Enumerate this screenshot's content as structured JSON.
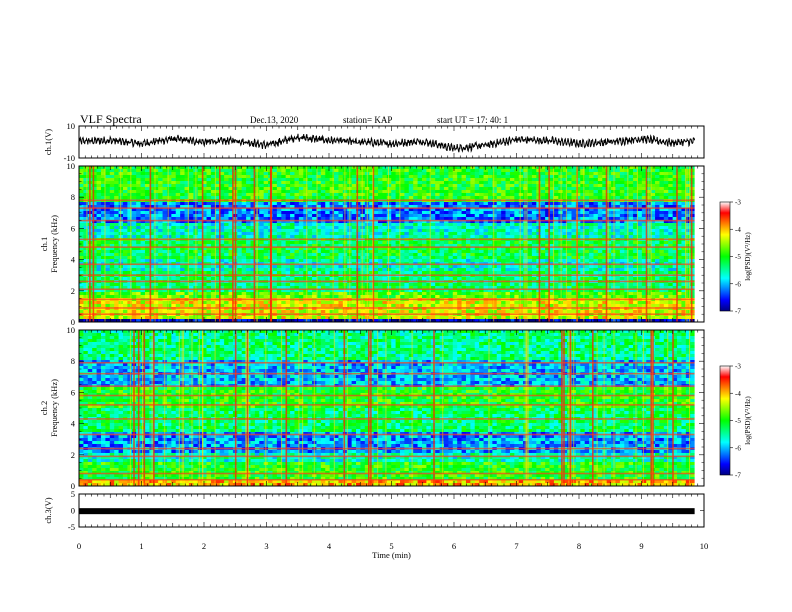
{
  "header": {
    "title": "VLF Spectra",
    "date": "Dec.13, 2020",
    "station": "station= KAP",
    "start": "start  UT =   17: 40: 1"
  },
  "colors": {
    "stops": [
      "#000080",
      "#0000ff",
      "#0080ff",
      "#00ffff",
      "#00ff80",
      "#00ff00",
      "#80ff00",
      "#ffff00",
      "#ff8000",
      "#ff0000",
      "#ffffff"
    ]
  },
  "chart_data": [
    {
      "type": "line",
      "panel": "ch1-waveform",
      "ylabel": "ch.1(V)",
      "ylim": [
        -10,
        10
      ],
      "yticks": [
        "10",
        "-10"
      ],
      "xlim": [
        0,
        10
      ],
      "x_end_min": 9.85,
      "envelope": [
        {
          "x": 0.0,
          "y": 0.5
        },
        {
          "x": 0.5,
          "y": 1.0
        },
        {
          "x": 1.0,
          "y": -1.0
        },
        {
          "x": 1.5,
          "y": 2.0
        },
        {
          "x": 2.0,
          "y": 0.0
        },
        {
          "x": 2.5,
          "y": 1.0
        },
        {
          "x": 3.0,
          "y": -2.0
        },
        {
          "x": 3.5,
          "y": 3.0
        },
        {
          "x": 4.0,
          "y": 1.0
        },
        {
          "x": 4.5,
          "y": 0.0
        },
        {
          "x": 5.0,
          "y": -1.0
        },
        {
          "x": 5.5,
          "y": 0.5
        },
        {
          "x": 6.0,
          "y": -4.0
        },
        {
          "x": 6.5,
          "y": -2.0
        },
        {
          "x": 7.0,
          "y": 1.5
        },
        {
          "x": 7.5,
          "y": 1.0
        },
        {
          "x": 8.0,
          "y": -1.0
        },
        {
          "x": 8.5,
          "y": 0.0
        },
        {
          "x": 9.0,
          "y": 2.0
        },
        {
          "x": 9.5,
          "y": -0.5
        },
        {
          "x": 9.85,
          "y": 0.5
        }
      ]
    },
    {
      "type": "heatmap",
      "panel": "ch1-spectrogram",
      "ylabel": "Frequency (kHz)",
      "channel_label": "ch.1",
      "yticks": [
        "0",
        "2",
        "4",
        "6",
        "8",
        "10"
      ],
      "ylim": [
        0,
        10
      ],
      "xlim": [
        0,
        10
      ],
      "colorbar": {
        "label": "log(PSD)(V²/Hz)",
        "ticks": [
          "-3",
          "-4",
          "-5",
          "-6",
          "-7"
        ],
        "range": [
          -7,
          -3
        ]
      },
      "bands_khz": [
        {
          "from": 0.0,
          "to": 0.2,
          "level": -6.8
        },
        {
          "from": 0.2,
          "to": 1.5,
          "level": -4.3
        },
        {
          "from": 1.5,
          "to": 2.0,
          "level": -4.8
        },
        {
          "from": 2.0,
          "to": 3.2,
          "level": -5.3
        },
        {
          "from": 3.2,
          "to": 4.0,
          "level": -5.6
        },
        {
          "from": 4.0,
          "to": 5.4,
          "level": -5.2
        },
        {
          "from": 5.4,
          "to": 6.3,
          "level": -5.6
        },
        {
          "from": 6.3,
          "to": 7.6,
          "level": -6.2
        },
        {
          "from": 7.6,
          "to": 10.0,
          "level": -5.0
        }
      ],
      "lines_khz": [
        0.5,
        0.9,
        1.45,
        2.1,
        2.6,
        3.0,
        3.7,
        4.8,
        5.3,
        6.5,
        7.3,
        7.8
      ]
    },
    {
      "type": "heatmap",
      "panel": "ch2-spectrogram",
      "ylabel": "Frequency (kHz)",
      "channel_label": "ch.2",
      "yticks": [
        "0",
        "2",
        "4",
        "6",
        "8",
        "10"
      ],
      "ylim": [
        0,
        10
      ],
      "xlim": [
        0,
        10
      ],
      "colorbar": {
        "label": "log(PSD)(V²/Hz)",
        "ticks": [
          "-3",
          "-4",
          "-5",
          "-6",
          "-7"
        ],
        "range": [
          -7,
          -3
        ]
      },
      "bands_khz": [
        {
          "from": 0.0,
          "to": 0.3,
          "level": -4.0
        },
        {
          "from": 0.3,
          "to": 1.5,
          "level": -5.0
        },
        {
          "from": 1.5,
          "to": 2.2,
          "level": -5.6
        },
        {
          "from": 2.2,
          "to": 3.5,
          "level": -6.1
        },
        {
          "from": 3.5,
          "to": 5.0,
          "level": -5.3
        },
        {
          "from": 5.0,
          "to": 6.3,
          "level": -5.0
        },
        {
          "from": 6.3,
          "to": 8.0,
          "level": -6.0
        },
        {
          "from": 8.0,
          "to": 10.0,
          "level": -5.4
        }
      ],
      "lines_khz": [
        0.4,
        0.8,
        1.9,
        2.4,
        3.3,
        4.3,
        5.2,
        5.8,
        6.4,
        7.2,
        7.9
      ]
    },
    {
      "type": "line",
      "panel": "ch3-waveform",
      "ylabel": "ch.3(V)",
      "ylim": [
        -5,
        5
      ],
      "yticks": [
        "5",
        "0",
        "-5"
      ],
      "xlim": [
        0,
        10
      ],
      "x_end_min": 9.85,
      "constant": -0.2
    }
  ],
  "xaxis": {
    "label": "Time (min)",
    "ticks": [
      "0",
      "1",
      "2",
      "3",
      "4",
      "5",
      "6",
      "7",
      "8",
      "9",
      "10"
    ]
  }
}
